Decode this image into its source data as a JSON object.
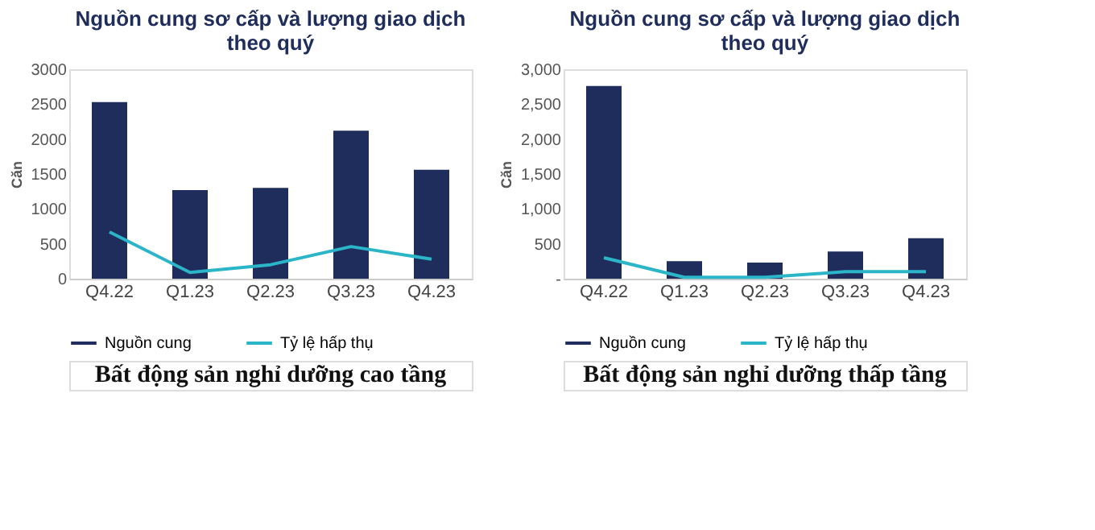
{
  "chart_data": [
    {
      "type": "bar",
      "title": "Nguồn cung sơ cấp và lượng giao dịch theo quý",
      "ylabel": "Căn",
      "categories": [
        "Q4.22",
        "Q1.23",
        "Q2.23",
        "Q3.23",
        "Q4.23"
      ],
      "series": [
        {
          "name": "Nguồn cung",
          "color": "#1f2d5c",
          "values": [
            2530,
            1270,
            1300,
            2120,
            1560
          ]
        },
        {
          "name": "Tỷ lệ hấp thụ",
          "type": "line",
          "color": "#2bb5c8",
          "values": [
            670,
            90,
            200,
            460,
            280
          ]
        }
      ],
      "ylim": [
        0,
        3000
      ],
      "yticks": [
        0,
        500,
        1000,
        1500,
        2000,
        2500,
        3000
      ],
      "grid": false,
      "legend": "bottom",
      "marker": "none",
      "annotations": [
        "Bất động sản nghỉ dưỡng cao tầng"
      ]
    },
    {
      "type": "bar",
      "title": "Nguồn cung sơ cấp và lượng giao dịch theo quý",
      "ylabel": "Căn",
      "categories": [
        "Q4.22",
        "Q1.23",
        "Q2.23",
        "Q3.23",
        "Q4.23"
      ],
      "series": [
        {
          "name": "Nguồn cung",
          "color": "#1f2d5c",
          "values": [
            2760,
            250,
            230,
            390,
            580
          ]
        },
        {
          "name": "Tỷ lệ hấp thụ",
          "type": "line",
          "color": "#2bb5c8",
          "values": [
            300,
            20,
            20,
            100,
            100
          ]
        }
      ],
      "ylim": [
        0,
        3000
      ],
      "yticks": [
        {
          "value": 0,
          "label": "-"
        },
        {
          "value": 500,
          "label": "500"
        },
        {
          "value": 1000,
          "label": "1,000"
        },
        {
          "value": 1500,
          "label": "1,500"
        },
        {
          "value": 2000,
          "label": "2,000"
        },
        {
          "value": 2500,
          "label": "2,500"
        },
        {
          "value": 3000,
          "label": "3,000"
        }
      ],
      "grid": false,
      "legend": "bottom",
      "marker": "none",
      "annotations": [
        "Bất động sản nghỉ dưỡng thấp tầng"
      ]
    }
  ]
}
